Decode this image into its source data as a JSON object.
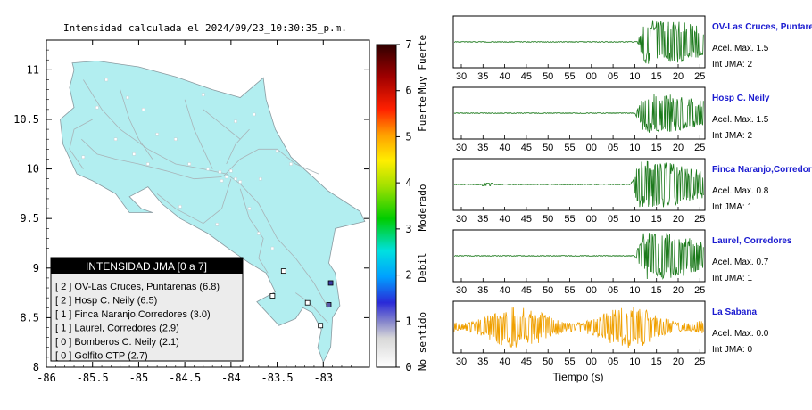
{
  "map": {
    "title": "Intensidad calculada el 2024/09/23_10:30:35_p.m.",
    "y_ticks": [
      "8",
      "8.5",
      "9",
      "9.5",
      "10",
      "10.5",
      "11"
    ],
    "x_ticks": [
      "-86",
      "-85.5",
      "-85",
      "-84.5",
      "-84",
      "-83.5",
      "-83"
    ],
    "xlim": [
      -86,
      -82.5
    ],
    "ylim": [
      8,
      11.3
    ],
    "land_color": "#b2eef0",
    "legend": {
      "title": "INTENSIDAD JMA [0 a 7]",
      "items": [
        "[ 2 ]  OV-Las Cruces, Puntarenas (6.8)",
        "[ 2 ]  Hosp C. Neily (6.5)",
        "[ 1 ]  Finca Naranjo,Corredores (3.0)",
        "[ 1 ]  Laurel, Corredores (2.9)",
        "[ 0 ]  Bomberos C. Neily (2.1)",
        "[ 0 ]  Golfito CTP (2.7)"
      ]
    },
    "colorbar": {
      "ticks": [
        "0",
        "1",
        "2",
        "3",
        "4",
        "5",
        "6",
        "7"
      ],
      "labels": [
        "No sentido",
        "Debil",
        "Moderado",
        "Fuerte",
        "Muy Fuerte"
      ]
    },
    "stations": [
      {
        "lon": -82.92,
        "lat": 8.85,
        "color": "#3a3aa0"
      },
      {
        "lon": -82.94,
        "lat": 8.63,
        "color": "#5a5aa8"
      },
      {
        "lon": -83.43,
        "lat": 8.97,
        "color": "#ffffff"
      },
      {
        "lon": -83.55,
        "lat": 8.72,
        "color": "#ffffff"
      },
      {
        "lon": -83.17,
        "lat": 8.65,
        "color": "#ffffff"
      },
      {
        "lon": -83.03,
        "lat": 8.42,
        "color": "#ffffff"
      }
    ]
  },
  "waveforms": {
    "xlabel": "Tiempo (s)",
    "tick_labels": [
      "30",
      "35",
      "40",
      "45",
      "50",
      "55",
      "00",
      "05",
      "10",
      "15",
      "20",
      "25"
    ],
    "panels": [
      {
        "name": "OV-Las Cruces, Puntarenas",
        "accel": "Acel. Max. 1.5",
        "jma": "Int JMA: 2",
        "color": "#1c7a1c",
        "start": 10.5,
        "peak": 1.0,
        "noise": 0.0
      },
      {
        "name": "Hosp C. Neily",
        "accel": "Acel. Max. 1.5",
        "jma": "Int JMA: 2",
        "color": "#1c7a1c",
        "start": 10.0,
        "peak": 0.85,
        "noise": 0.0
      },
      {
        "name": "Finca Naranjo,Corredores",
        "accel": "Acel. Max. 0.8",
        "jma": "Int JMA: 1",
        "color": "#1c7a1c",
        "start": 9.0,
        "peak": 1.0,
        "noise": 0.0
      },
      {
        "name": "Laurel, Corredores",
        "accel": "Acel. Max. 0.7",
        "jma": "Int JMA: 1",
        "color": "#1c7a1c",
        "start": 10.0,
        "peak": 1.0,
        "noise": 0.0
      },
      {
        "name": "La Sabana",
        "accel": "Acel. Max. 0.0",
        "jma": "Int JMA: 0",
        "color": "#f0a000",
        "start": -100,
        "peak": 0.0,
        "noise": 1.0
      }
    ]
  },
  "chart_data": [
    {
      "type": "scatter",
      "title": "Intensidad calculada el 2024/09/23_10:30:35_p.m.",
      "xlim": [
        -86,
        -82.5
      ],
      "ylim": [
        8,
        11.3
      ],
      "legend_title": "INTENSIDAD JMA [0 a 7]",
      "stations": [
        {
          "name": "OV-Las Cruces, Puntarenas",
          "jma": 2,
          "value": 6.8
        },
        {
          "name": "Hosp C. Neily",
          "jma": 2,
          "value": 6.5
        },
        {
          "name": "Finca Naranjo,Corredores",
          "jma": 1,
          "value": 3.0
        },
        {
          "name": "Laurel, Corredores",
          "jma": 1,
          "value": 2.9
        },
        {
          "name": "Bomberos C. Neily",
          "jma": 0,
          "value": 2.1
        },
        {
          "name": "Golfito CTP",
          "jma": 0,
          "value": 2.7
        }
      ]
    },
    {
      "type": "line",
      "xlabel": "Tiempo (s)",
      "series": [
        {
          "name": "OV-Las Cruces, Puntarenas",
          "acel_max": 1.5,
          "int_jma": 2
        },
        {
          "name": "Hosp C. Neily",
          "acel_max": 1.5,
          "int_jma": 2
        },
        {
          "name": "Finca Naranjo,Corredores",
          "acel_max": 0.8,
          "int_jma": 1
        },
        {
          "name": "Laurel, Corredores",
          "acel_max": 0.7,
          "int_jma": 1
        },
        {
          "name": "La Sabana",
          "acel_max": 0.0,
          "int_jma": 0
        }
      ]
    }
  ]
}
